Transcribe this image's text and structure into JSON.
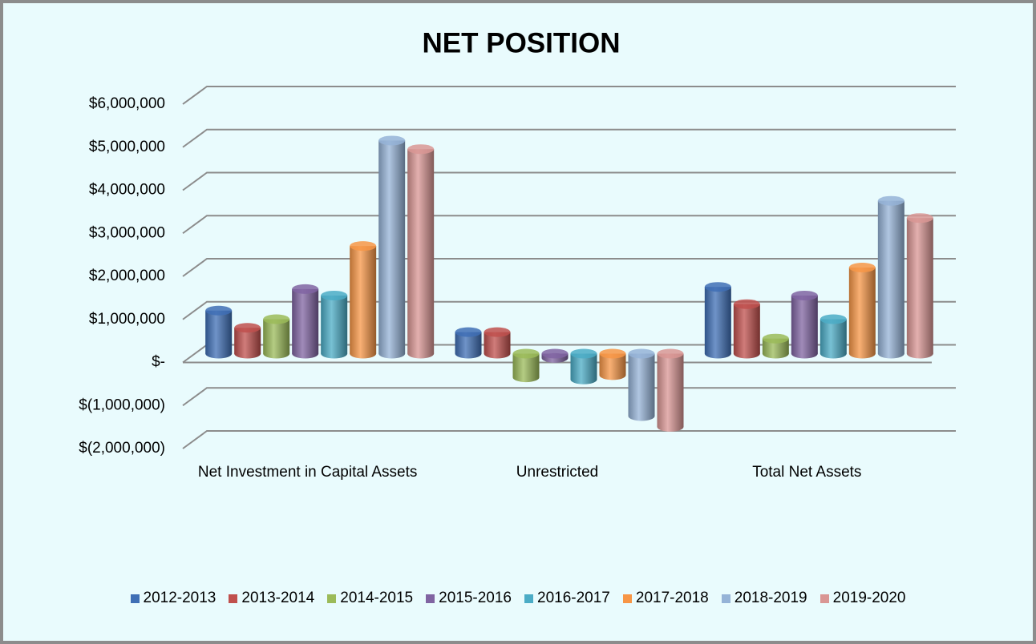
{
  "chart_data": {
    "type": "bar3d",
    "title": "NET POSITION",
    "categories": [
      "Net Investment in Capital Assets",
      "Unrestricted",
      "Total Net Assets"
    ],
    "series": [
      {
        "name": "2012-2013",
        "color": "#3f6fb5",
        "values": [
          1000000,
          500000,
          1550000
        ]
      },
      {
        "name": "2013-2014",
        "color": "#c0504d",
        "values": [
          600000,
          500000,
          1150000
        ]
      },
      {
        "name": "2014-2015",
        "color": "#9bbb59",
        "values": [
          800000,
          -550000,
          350000
        ]
      },
      {
        "name": "2015-2016",
        "color": "#8064a2",
        "values": [
          1500000,
          -100000,
          1350000
        ]
      },
      {
        "name": "2016-2017",
        "color": "#4bacc6",
        "values": [
          1350000,
          -600000,
          800000
        ]
      },
      {
        "name": "2017-2018",
        "color": "#f79646",
        "values": [
          2500000,
          -500000,
          2000000
        ]
      },
      {
        "name": "2018-2019",
        "color": "#95b3d7",
        "values": [
          4950000,
          -1450000,
          3550000
        ]
      },
      {
        "name": "2019-2020",
        "color": "#d99694",
        "values": [
          4750000,
          -1700000,
          3150000
        ]
      }
    ],
    "ylim": [
      -2000000,
      6000000
    ],
    "yticks": [
      {
        "value": -2000000,
        "label": "$(2,000,000)"
      },
      {
        "value": -1000000,
        "label": "$(1,000,000)"
      },
      {
        "value": 0,
        "label": "$-"
      },
      {
        "value": 1000000,
        "label": "$1,000,000"
      },
      {
        "value": 2000000,
        "label": "$2,000,000"
      },
      {
        "value": 3000000,
        "label": "$3,000,000"
      },
      {
        "value": 4000000,
        "label": "$4,000,000"
      },
      {
        "value": 5000000,
        "label": "$5,000,000"
      },
      {
        "value": 6000000,
        "label": "$6,000,000"
      }
    ],
    "grid": true,
    "legend": "bottom"
  }
}
